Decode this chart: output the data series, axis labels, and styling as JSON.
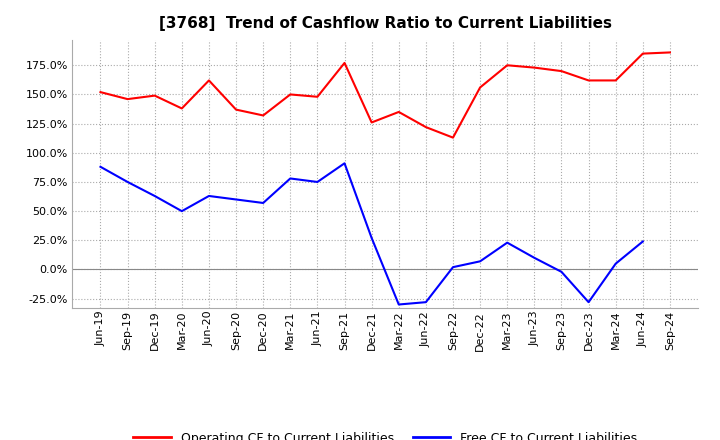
{
  "title": "[3768]  Trend of Cashflow Ratio to Current Liabilities",
  "x_labels": [
    "Jun-19",
    "Sep-19",
    "Dec-19",
    "Mar-20",
    "Jun-20",
    "Sep-20",
    "Dec-20",
    "Mar-21",
    "Jun-21",
    "Sep-21",
    "Dec-21",
    "Mar-22",
    "Jun-22",
    "Sep-22",
    "Dec-22",
    "Mar-23",
    "Jun-23",
    "Sep-23",
    "Dec-23",
    "Mar-24",
    "Jun-24",
    "Sep-24"
  ],
  "operating_cf": [
    1.52,
    1.46,
    1.49,
    1.38,
    1.62,
    1.37,
    1.32,
    1.5,
    1.48,
    1.77,
    1.26,
    1.35,
    1.22,
    1.13,
    1.56,
    1.75,
    1.73,
    1.7,
    1.62,
    1.62,
    1.85,
    1.86
  ],
  "free_cf": [
    0.88,
    0.75,
    0.63,
    0.5,
    0.63,
    0.6,
    0.57,
    0.78,
    0.75,
    0.91,
    0.27,
    -0.3,
    -0.28,
    0.02,
    0.07,
    0.23,
    0.1,
    -0.02,
    -0.28,
    0.05,
    0.24,
    null
  ],
  "operating_color": "#ff0000",
  "free_color": "#0000ff",
  "background_color": "#ffffff",
  "plot_bg_color": "#ffffff",
  "grid_color": "#aaaaaa",
  "legend_op": "Operating CF to Current Liabilities",
  "legend_free": "Free CF to Current Liabilities",
  "yticks": [
    -0.25,
    0.0,
    0.25,
    0.5,
    0.75,
    1.0,
    1.25,
    1.5,
    1.75
  ],
  "ylim_min": -0.33,
  "ylim_max": 1.97,
  "title_fontsize": 11,
  "tick_fontsize": 8,
  "legend_fontsize": 9
}
